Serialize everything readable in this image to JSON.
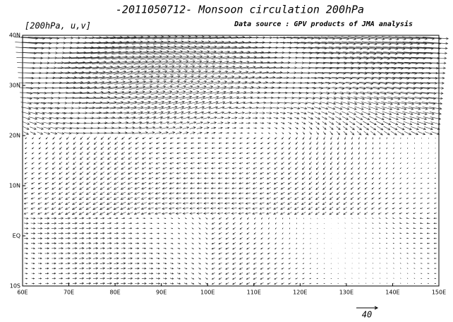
{
  "header": {
    "title": "-2011050712- Monsoon circulation 200hPa",
    "level_label": "[200hPa, u,v]",
    "source": "Data source : GPV products of JMA analysis"
  },
  "map": {
    "lon_range": [
      60,
      150
    ],
    "lat_range": [
      -10,
      40
    ],
    "lon_ticks": [
      {
        "value": 60,
        "label": "60E"
      },
      {
        "value": 70,
        "label": "70E"
      },
      {
        "value": 80,
        "label": "80E"
      },
      {
        "value": 90,
        "label": "90E"
      },
      {
        "value": 100,
        "label": "100E"
      },
      {
        "value": 110,
        "label": "110E"
      },
      {
        "value": 120,
        "label": "120E"
      },
      {
        "value": 130,
        "label": "130E"
      },
      {
        "value": 140,
        "label": "140E"
      },
      {
        "value": 150,
        "label": "150E"
      }
    ],
    "lat_ticks": [
      {
        "value": -10,
        "label": "10S"
      },
      {
        "value": 0,
        "label": "EQ"
      },
      {
        "value": 10,
        "label": "10N"
      },
      {
        "value": 20,
        "label": "20N"
      },
      {
        "value": 30,
        "label": "30N"
      },
      {
        "value": 40,
        "label": "40N"
      }
    ],
    "reference_vector": 40
  }
}
